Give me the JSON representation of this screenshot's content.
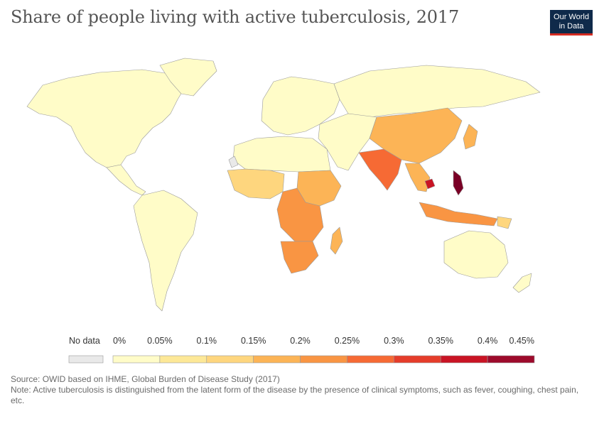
{
  "title": "Share of people living with active tuberculosis, 2017",
  "logo": {
    "line1": "Our World",
    "line2": "in Data"
  },
  "legend": {
    "no_data_label": "No data",
    "bins": [
      {
        "label": "0%",
        "color": "#fffcc8"
      },
      {
        "label": "0.05%",
        "color": "#fde897"
      },
      {
        "label": "0.1%",
        "color": "#fed67e"
      },
      {
        "label": "0.15%",
        "color": "#fcb456"
      },
      {
        "label": "0.2%",
        "color": "#f99543"
      },
      {
        "label": "0.25%",
        "color": "#f66a34"
      },
      {
        "label": "0.3%",
        "color": "#e53c2a"
      },
      {
        "label": "0.35%",
        "color": "#c91424"
      },
      {
        "label": "0.4%",
        "color": "#9d0a2b"
      },
      {
        "label": "0.45%",
        "color": ""
      }
    ],
    "no_data_color": "#e9e9e9"
  },
  "footer": {
    "source": "Source: OWID based on IHME, Global Burden of Disease Study (2017)",
    "note": "Note: Active tuberculosis is distinguished from the latent form of the disease by the presence of clinical symptoms, such as fever, coughing, chest pain, etc."
  },
  "colors": {
    "lowest": "#fffcc8",
    "low": "#fde897",
    "mid_low": "#fed67e",
    "mid": "#fcb456",
    "mid_high": "#f99543",
    "high": "#f66a34",
    "very_high": "#e53c2a",
    "highest": "#7a0026",
    "no_data": "#e9e9e9"
  }
}
